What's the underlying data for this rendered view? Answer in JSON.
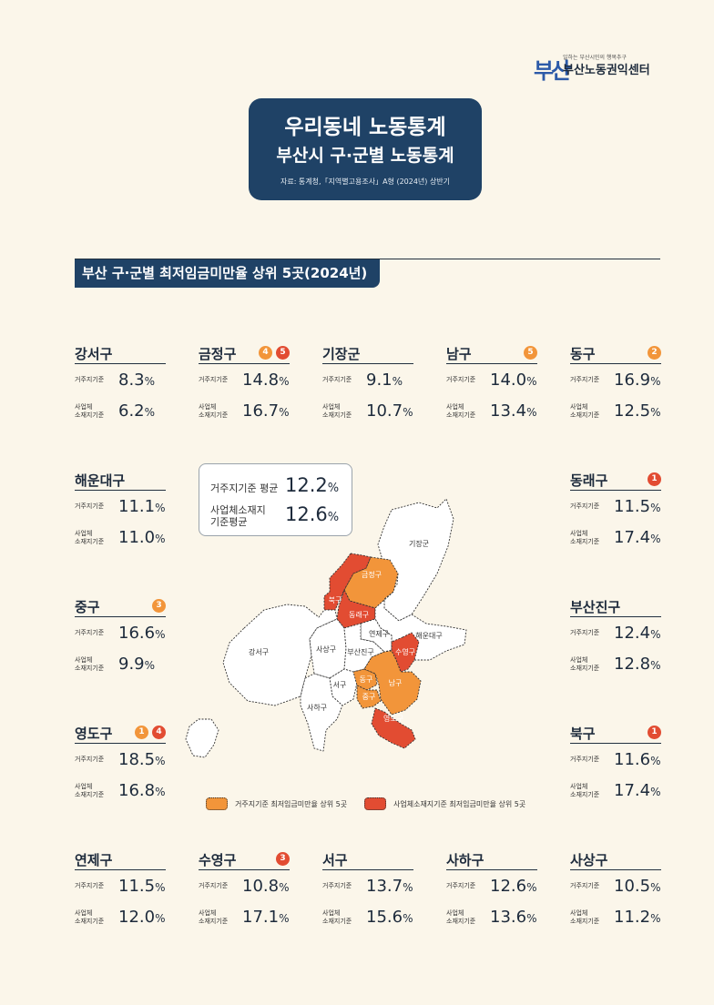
{
  "logo": {
    "mark": "부산",
    "subtitle": "일하는 부산시민의 행복추구",
    "name": "부산노동권익센터"
  },
  "header": {
    "title_main": "우리동네 노동통계",
    "title_sub": "부산시 구·군별 노동통계",
    "source": "자료: 통계청,「지역별고용조사」A형 (2024년) 상반기"
  },
  "section": {
    "title": "부산 구·군별 최저임금미만율 상위 5곳(2024년)"
  },
  "labels": {
    "residence": "거주지기준",
    "workplace_line1": "사업체",
    "workplace_line2": "소재지기준",
    "unit": "%"
  },
  "colors": {
    "residence_top5": "#f2953a",
    "workplace_top5": "#e24c32",
    "header_bg": "#1f4266",
    "background": "#fbf6ea"
  },
  "average": {
    "residence_label": "거주지기준 평균",
    "residence_value": "12.2",
    "workplace_label": "사업체소재지 기준평균",
    "workplace_value": "12.6"
  },
  "districts": [
    {
      "name": "강서구",
      "residence": "8.3",
      "workplace": "6.2",
      "ranks": []
    },
    {
      "name": "금정구",
      "residence": "14.8",
      "workplace": "16.7",
      "ranks": [
        {
          "n": "4",
          "type": "residence"
        },
        {
          "n": "5",
          "type": "workplace"
        }
      ]
    },
    {
      "name": "기장군",
      "residence": "9.1",
      "workplace": "10.7",
      "ranks": []
    },
    {
      "name": "남구",
      "residence": "14.0",
      "workplace": "13.4",
      "ranks": [
        {
          "n": "5",
          "type": "residence"
        }
      ]
    },
    {
      "name": "동구",
      "residence": "16.9",
      "workplace": "12.5",
      "ranks": [
        {
          "n": "2",
          "type": "residence"
        }
      ]
    },
    {
      "name": "해운대구",
      "residence": "11.1",
      "workplace": "11.0",
      "ranks": []
    },
    {
      "name": "동래구",
      "residence": "11.5",
      "workplace": "17.4",
      "ranks": [
        {
          "n": "1",
          "type": "workplace"
        }
      ]
    },
    {
      "name": "중구",
      "residence": "16.6",
      "workplace": "9.9",
      "ranks": [
        {
          "n": "3",
          "type": "residence"
        }
      ]
    },
    {
      "name": "부산진구",
      "residence": "12.4",
      "workplace": "12.8",
      "ranks": []
    },
    {
      "name": "영도구",
      "residence": "18.5",
      "workplace": "16.8",
      "ranks": [
        {
          "n": "1",
          "type": "residence"
        },
        {
          "n": "4",
          "type": "workplace"
        }
      ]
    },
    {
      "name": "북구",
      "residence": "11.6",
      "workplace": "17.4",
      "ranks": [
        {
          "n": "1",
          "type": "workplace"
        }
      ]
    },
    {
      "name": "연제구",
      "residence": "11.5",
      "workplace": "12.0",
      "ranks": []
    },
    {
      "name": "수영구",
      "residence": "10.8",
      "workplace": "17.1",
      "ranks": [
        {
          "n": "3",
          "type": "workplace"
        }
      ]
    },
    {
      "name": "서구",
      "residence": "13.7",
      "workplace": "15.6",
      "ranks": []
    },
    {
      "name": "사하구",
      "residence": "12.6",
      "workplace": "13.6",
      "ranks": []
    },
    {
      "name": "사상구",
      "residence": "10.5",
      "workplace": "11.2",
      "ranks": []
    }
  ],
  "map": {
    "regions": [
      {
        "key": "gijang",
        "label": "기장군",
        "category": "none"
      },
      {
        "key": "geumjeong",
        "label": "금정구",
        "category": "residence"
      },
      {
        "key": "buk",
        "label": "북구",
        "category": "workplace"
      },
      {
        "key": "dongnae",
        "label": "동래구",
        "category": "workplace"
      },
      {
        "key": "haeundae",
        "label": "해운대구",
        "category": "none"
      },
      {
        "key": "yeonje",
        "label": "연제구",
        "category": "none"
      },
      {
        "key": "gangseo",
        "label": "강서구",
        "category": "none"
      },
      {
        "key": "sasang",
        "label": "사상구",
        "category": "none"
      },
      {
        "key": "busanjin",
        "label": "부산진구",
        "category": "none"
      },
      {
        "key": "suyeong",
        "label": "수영구",
        "category": "workplace"
      },
      {
        "key": "seo",
        "label": "서구",
        "category": "none"
      },
      {
        "key": "dong",
        "label": "동구",
        "category": "residence"
      },
      {
        "key": "nam",
        "label": "남구",
        "category": "residence"
      },
      {
        "key": "jung",
        "label": "중구",
        "category": "residence"
      },
      {
        "key": "saha",
        "label": "사하구",
        "category": "none"
      },
      {
        "key": "yeongdo",
        "label": "영도구",
        "category": "workplace"
      }
    ]
  },
  "legend": {
    "residence": "거주지기준 최저임금미만율 상위 5곳",
    "workplace": "사업체소재지기준 최저임금미만율 상위 5곳"
  }
}
